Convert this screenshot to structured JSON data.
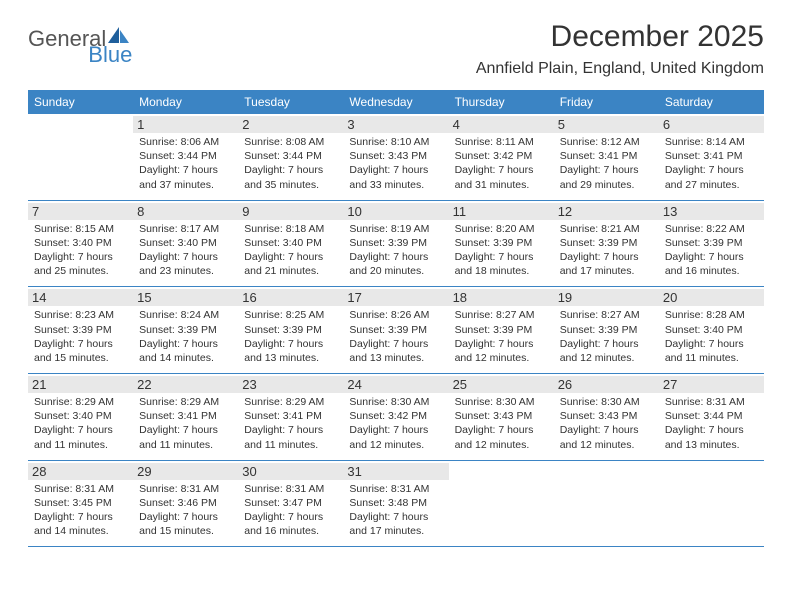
{
  "logo": {
    "part1": "General",
    "part2": "Blue"
  },
  "title": "December 2025",
  "location": "Annfield Plain, England, United Kingdom",
  "colors": {
    "header_bg": "#3b84c4",
    "header_text": "#ffffff",
    "daynum_bg": "#e8e8e8",
    "text": "#333333",
    "border": "#3b84c4"
  },
  "daynames": [
    "Sunday",
    "Monday",
    "Tuesday",
    "Wednesday",
    "Thursday",
    "Friday",
    "Saturday"
  ],
  "weeks": [
    [
      null,
      {
        "n": "1",
        "sr": "8:06 AM",
        "ss": "3:44 PM",
        "dl": "7 hours and 37 minutes."
      },
      {
        "n": "2",
        "sr": "8:08 AM",
        "ss": "3:44 PM",
        "dl": "7 hours and 35 minutes."
      },
      {
        "n": "3",
        "sr": "8:10 AM",
        "ss": "3:43 PM",
        "dl": "7 hours and 33 minutes."
      },
      {
        "n": "4",
        "sr": "8:11 AM",
        "ss": "3:42 PM",
        "dl": "7 hours and 31 minutes."
      },
      {
        "n": "5",
        "sr": "8:12 AM",
        "ss": "3:41 PM",
        "dl": "7 hours and 29 minutes."
      },
      {
        "n": "6",
        "sr": "8:14 AM",
        "ss": "3:41 PM",
        "dl": "7 hours and 27 minutes."
      }
    ],
    [
      {
        "n": "7",
        "sr": "8:15 AM",
        "ss": "3:40 PM",
        "dl": "7 hours and 25 minutes."
      },
      {
        "n": "8",
        "sr": "8:17 AM",
        "ss": "3:40 PM",
        "dl": "7 hours and 23 minutes."
      },
      {
        "n": "9",
        "sr": "8:18 AM",
        "ss": "3:40 PM",
        "dl": "7 hours and 21 minutes."
      },
      {
        "n": "10",
        "sr": "8:19 AM",
        "ss": "3:39 PM",
        "dl": "7 hours and 20 minutes."
      },
      {
        "n": "11",
        "sr": "8:20 AM",
        "ss": "3:39 PM",
        "dl": "7 hours and 18 minutes."
      },
      {
        "n": "12",
        "sr": "8:21 AM",
        "ss": "3:39 PM",
        "dl": "7 hours and 17 minutes."
      },
      {
        "n": "13",
        "sr": "8:22 AM",
        "ss": "3:39 PM",
        "dl": "7 hours and 16 minutes."
      }
    ],
    [
      {
        "n": "14",
        "sr": "8:23 AM",
        "ss": "3:39 PM",
        "dl": "7 hours and 15 minutes."
      },
      {
        "n": "15",
        "sr": "8:24 AM",
        "ss": "3:39 PM",
        "dl": "7 hours and 14 minutes."
      },
      {
        "n": "16",
        "sr": "8:25 AM",
        "ss": "3:39 PM",
        "dl": "7 hours and 13 minutes."
      },
      {
        "n": "17",
        "sr": "8:26 AM",
        "ss": "3:39 PM",
        "dl": "7 hours and 13 minutes."
      },
      {
        "n": "18",
        "sr": "8:27 AM",
        "ss": "3:39 PM",
        "dl": "7 hours and 12 minutes."
      },
      {
        "n": "19",
        "sr": "8:27 AM",
        "ss": "3:39 PM",
        "dl": "7 hours and 12 minutes."
      },
      {
        "n": "20",
        "sr": "8:28 AM",
        "ss": "3:40 PM",
        "dl": "7 hours and 11 minutes."
      }
    ],
    [
      {
        "n": "21",
        "sr": "8:29 AM",
        "ss": "3:40 PM",
        "dl": "7 hours and 11 minutes."
      },
      {
        "n": "22",
        "sr": "8:29 AM",
        "ss": "3:41 PM",
        "dl": "7 hours and 11 minutes."
      },
      {
        "n": "23",
        "sr": "8:29 AM",
        "ss": "3:41 PM",
        "dl": "7 hours and 11 minutes."
      },
      {
        "n": "24",
        "sr": "8:30 AM",
        "ss": "3:42 PM",
        "dl": "7 hours and 12 minutes."
      },
      {
        "n": "25",
        "sr": "8:30 AM",
        "ss": "3:43 PM",
        "dl": "7 hours and 12 minutes."
      },
      {
        "n": "26",
        "sr": "8:30 AM",
        "ss": "3:43 PM",
        "dl": "7 hours and 12 minutes."
      },
      {
        "n": "27",
        "sr": "8:31 AM",
        "ss": "3:44 PM",
        "dl": "7 hours and 13 minutes."
      }
    ],
    [
      {
        "n": "28",
        "sr": "8:31 AM",
        "ss": "3:45 PM",
        "dl": "7 hours and 14 minutes."
      },
      {
        "n": "29",
        "sr": "8:31 AM",
        "ss": "3:46 PM",
        "dl": "7 hours and 15 minutes."
      },
      {
        "n": "30",
        "sr": "8:31 AM",
        "ss": "3:47 PM",
        "dl": "7 hours and 16 minutes."
      },
      {
        "n": "31",
        "sr": "8:31 AM",
        "ss": "3:48 PM",
        "dl": "7 hours and 17 minutes."
      },
      null,
      null,
      null
    ]
  ],
  "labels": {
    "sunrise": "Sunrise:",
    "sunset": "Sunset:",
    "daylight": "Daylight:"
  }
}
